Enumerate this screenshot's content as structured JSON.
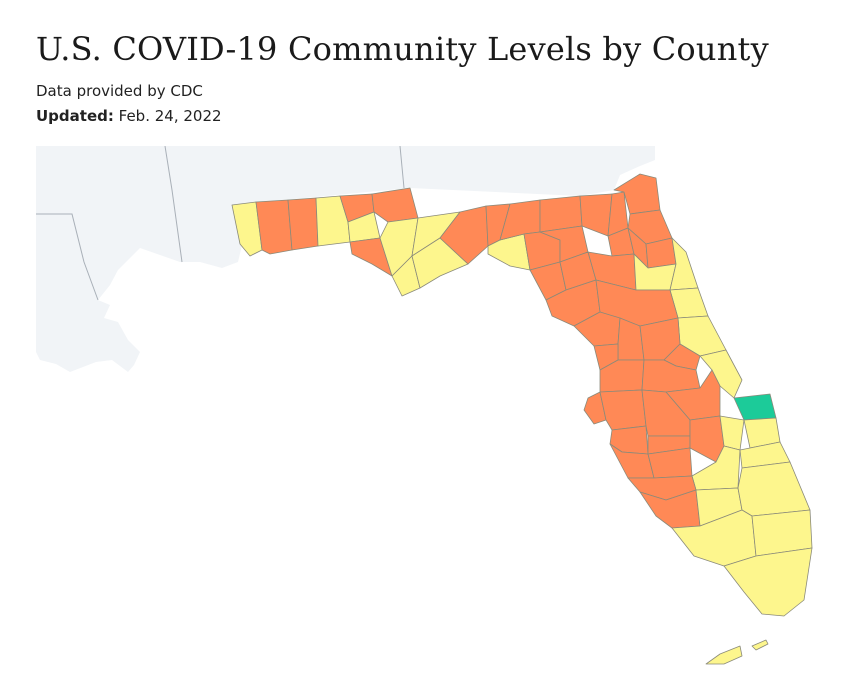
{
  "header": {
    "title": "U.S. COVID-19 Community Levels by County",
    "source": "Data provided by CDC",
    "updated_label": "Updated:",
    "updated_value": "Feb. 24, 2022"
  },
  "map": {
    "region": "Florida",
    "colors": {
      "high": "#ff8956",
      "medium": "#fdf68d",
      "low": "#1ccb99",
      "neighbor_land": "#f1f4f7",
      "water": "#ffffff",
      "borders": "#8a8a7a"
    },
    "icons": []
  }
}
